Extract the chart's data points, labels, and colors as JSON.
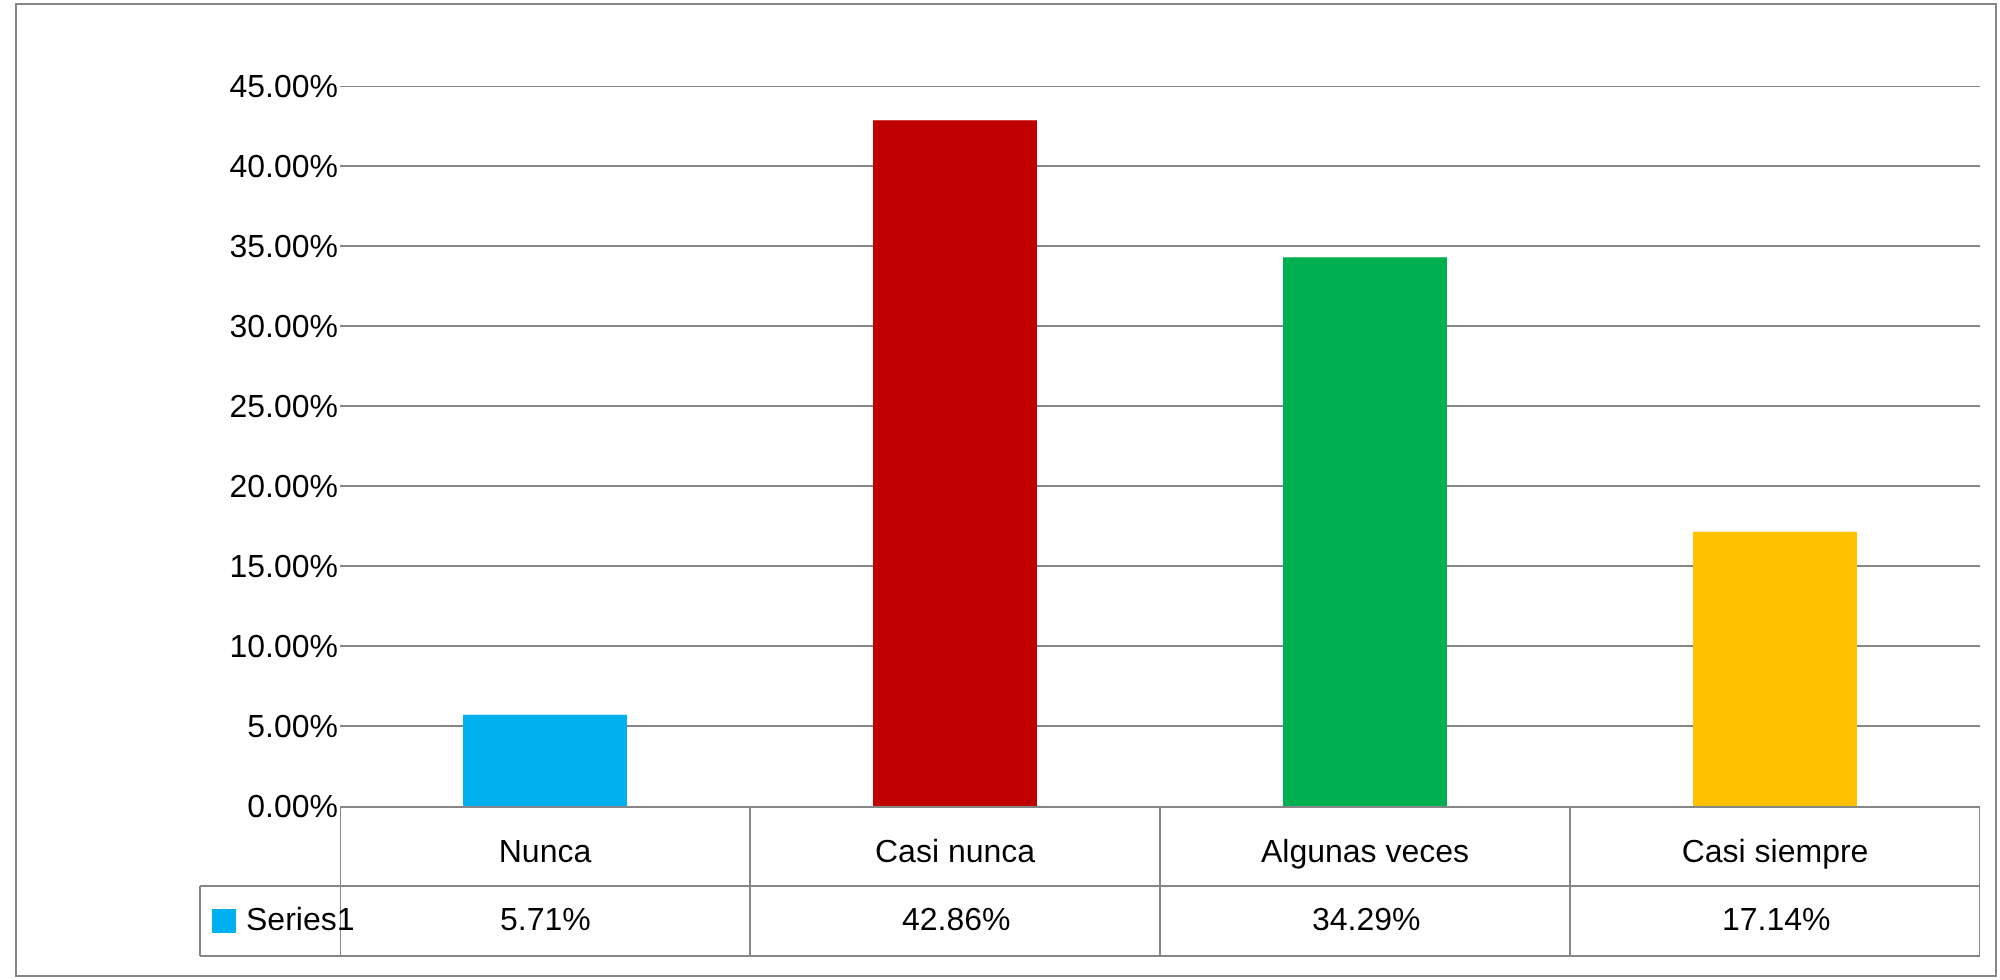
{
  "chart_data": {
    "type": "bar",
    "categories": [
      "Nunca",
      "Casi nunca",
      "Algunas veces",
      "Casi siempre"
    ],
    "series": [
      {
        "name": "Series1",
        "color": "#00b0f0",
        "colors": [
          "#00b0f0",
          "#c00000",
          "#00b050",
          "#ffc000"
        ],
        "values": [
          5.71,
          42.86,
          34.29,
          17.14
        ],
        "value_labels": [
          "5.71%",
          "42.86%",
          "34.29%",
          "17.14%"
        ]
      }
    ],
    "ylim": [
      0,
      45
    ],
    "yticks": [
      {
        "value": 0,
        "label": "0.00%"
      },
      {
        "value": 5,
        "label": "5.00%"
      },
      {
        "value": 10,
        "label": "10.00%"
      },
      {
        "value": 15,
        "label": "15.00%"
      },
      {
        "value": 20,
        "label": "20.00%"
      },
      {
        "value": 25,
        "label": "25.00%"
      },
      {
        "value": 30,
        "label": "30.00%"
      },
      {
        "value": 35,
        "label": "35.00%"
      },
      {
        "value": 40,
        "label": "40.00%"
      },
      {
        "value": 45,
        "label": "45.00%"
      }
    ],
    "grid": "y",
    "legend": "bottom left"
  }
}
